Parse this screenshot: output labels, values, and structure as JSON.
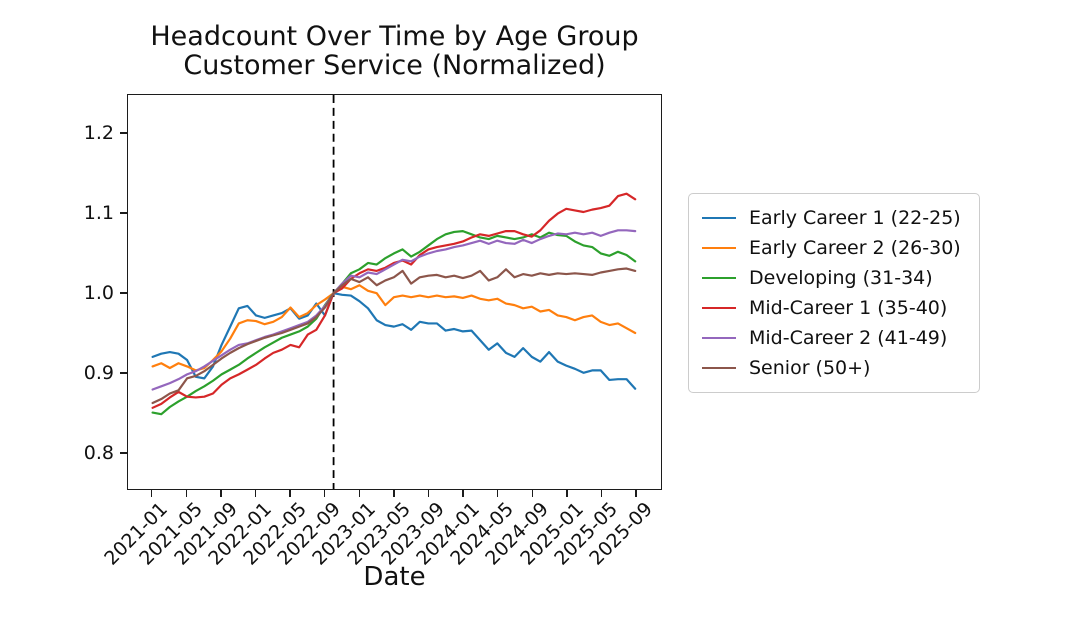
{
  "figure": {
    "title_line1": "Headcount Over Time by Age Group",
    "title_line2": "Customer Service (Normalized)",
    "xlabel": "Date"
  },
  "chart_data": {
    "type": "line",
    "title": "Headcount Over Time by Age Group",
    "subtitle": "Customer Service (Normalized)",
    "xlabel": "Date",
    "ylabel": "",
    "grid": false,
    "legend_position": "outside-right",
    "ylim": [
      0.754,
      1.249
    ],
    "y_ticks": [
      0.8,
      0.9,
      1.0,
      1.1,
      1.2
    ],
    "x_tick_labels": [
      "2021-01",
      "2021-05",
      "2021-09",
      "2022-01",
      "2022-05",
      "2022-09",
      "2023-01",
      "2023-05",
      "2023-09",
      "2024-01",
      "2024-05",
      "2024-09",
      "2025-01",
      "2025-05",
      "2025-09"
    ],
    "normalization_line": {
      "month": "2022-10",
      "value": 1.0,
      "style": "dashed",
      "color": "#000000"
    },
    "x_months": [
      "2021-01",
      "2021-02",
      "2021-03",
      "2021-04",
      "2021-05",
      "2021-06",
      "2021-07",
      "2021-08",
      "2021-09",
      "2021-10",
      "2021-11",
      "2021-12",
      "2022-01",
      "2022-02",
      "2022-03",
      "2022-04",
      "2022-05",
      "2022-06",
      "2022-07",
      "2022-08",
      "2022-09",
      "2022-10",
      "2022-11",
      "2022-12",
      "2023-01",
      "2023-02",
      "2023-03",
      "2023-04",
      "2023-05",
      "2023-06",
      "2023-07",
      "2023-08",
      "2023-09",
      "2023-10",
      "2023-11",
      "2023-12",
      "2024-01",
      "2024-02",
      "2024-03",
      "2024-04",
      "2024-05",
      "2024-06",
      "2024-07",
      "2024-08",
      "2024-09",
      "2024-10",
      "2024-11",
      "2024-12",
      "2025-01",
      "2025-02",
      "2025-03",
      "2025-04",
      "2025-05",
      "2025-06",
      "2025-07",
      "2025-08",
      "2025-09"
    ],
    "series": [
      {
        "name": "Early Career 1 (22-25)",
        "color": "#1f77b4",
        "values": [
          0.92,
          0.924,
          0.926,
          0.924,
          0.916,
          0.895,
          0.893,
          0.908,
          0.935,
          0.958,
          0.981,
          0.984,
          0.972,
          0.969,
          0.972,
          0.975,
          0.981,
          0.968,
          0.972,
          0.987,
          0.972,
          1.0,
          0.998,
          0.997,
          0.99,
          0.981,
          0.966,
          0.96,
          0.958,
          0.961,
          0.954,
          0.964,
          0.962,
          0.962,
          0.953,
          0.955,
          0.952,
          0.953,
          0.941,
          0.929,
          0.937,
          0.925,
          0.92,
          0.931,
          0.92,
          0.914,
          0.926,
          0.914,
          0.909,
          0.905,
          0.9,
          0.903,
          0.903,
          0.891,
          0.892,
          0.892,
          0.88
        ]
      },
      {
        "name": "Early Career 2 (26-30)",
        "color": "#ff7f0e",
        "values": [
          0.908,
          0.912,
          0.906,
          0.912,
          0.908,
          0.903,
          0.906,
          0.916,
          0.927,
          0.943,
          0.962,
          0.966,
          0.965,
          0.961,
          0.964,
          0.97,
          0.982,
          0.97,
          0.975,
          0.985,
          0.992,
          1.0,
          1.008,
          1.005,
          1.01,
          1.003,
          1.0,
          0.985,
          0.995,
          0.997,
          0.995,
          0.997,
          0.995,
          0.997,
          0.995,
          0.996,
          0.994,
          0.997,
          0.993,
          0.991,
          0.993,
          0.987,
          0.985,
          0.981,
          0.983,
          0.977,
          0.979,
          0.972,
          0.97,
          0.966,
          0.97,
          0.972,
          0.964,
          0.96,
          0.962,
          0.956,
          0.95
        ]
      },
      {
        "name": "Developing (31-34)",
        "color": "#2ca02c",
        "values": [
          0.85,
          0.848,
          0.857,
          0.864,
          0.87,
          0.877,
          0.883,
          0.89,
          0.898,
          0.904,
          0.91,
          0.918,
          0.925,
          0.932,
          0.938,
          0.944,
          0.948,
          0.952,
          0.958,
          0.968,
          0.985,
          1.0,
          1.012,
          1.025,
          1.03,
          1.038,
          1.036,
          1.044,
          1.05,
          1.055,
          1.046,
          1.052,
          1.06,
          1.068,
          1.074,
          1.077,
          1.078,
          1.074,
          1.07,
          1.068,
          1.072,
          1.07,
          1.068,
          1.07,
          1.074,
          1.07,
          1.076,
          1.073,
          1.072,
          1.065,
          1.06,
          1.058,
          1.05,
          1.047,
          1.052,
          1.048,
          1.04
        ]
      },
      {
        "name": "Mid-Career 1 (35-40)",
        "color": "#d62728",
        "values": [
          0.856,
          0.861,
          0.869,
          0.876,
          0.87,
          0.869,
          0.87,
          0.874,
          0.885,
          0.893,
          0.898,
          0.904,
          0.91,
          0.918,
          0.925,
          0.929,
          0.935,
          0.932,
          0.948,
          0.954,
          0.972,
          1.0,
          1.006,
          1.018,
          1.025,
          1.03,
          1.028,
          1.032,
          1.038,
          1.041,
          1.036,
          1.048,
          1.055,
          1.058,
          1.06,
          1.062,
          1.065,
          1.07,
          1.074,
          1.072,
          1.075,
          1.078,
          1.078,
          1.074,
          1.071,
          1.079,
          1.091,
          1.1,
          1.106,
          1.104,
          1.102,
          1.105,
          1.107,
          1.11,
          1.122,
          1.125,
          1.118
        ]
      },
      {
        "name": "Mid-Career 2 (41-49)",
        "color": "#9467bd",
        "values": [
          0.879,
          0.883,
          0.887,
          0.892,
          0.898,
          0.902,
          0.908,
          0.915,
          0.922,
          0.929,
          0.935,
          0.937,
          0.941,
          0.945,
          0.948,
          0.952,
          0.956,
          0.96,
          0.964,
          0.972,
          0.984,
          1.0,
          1.012,
          1.022,
          1.02,
          1.026,
          1.024,
          1.03,
          1.036,
          1.042,
          1.04,
          1.046,
          1.05,
          1.053,
          1.055,
          1.058,
          1.06,
          1.063,
          1.066,
          1.062,
          1.066,
          1.063,
          1.062,
          1.067,
          1.063,
          1.068,
          1.072,
          1.075,
          1.074,
          1.076,
          1.074,
          1.076,
          1.072,
          1.076,
          1.079,
          1.079,
          1.078
        ]
      },
      {
        "name": "Senior (50+)",
        "color": "#8c564b",
        "values": [
          0.862,
          0.867,
          0.874,
          0.878,
          0.893,
          0.896,
          0.902,
          0.91,
          0.918,
          0.925,
          0.931,
          0.936,
          0.94,
          0.944,
          0.947,
          0.95,
          0.954,
          0.958,
          0.962,
          0.97,
          0.982,
          1.0,
          1.01,
          1.018,
          1.014,
          1.02,
          1.01,
          1.016,
          1.02,
          1.028,
          1.012,
          1.02,
          1.022,
          1.023,
          1.02,
          1.022,
          1.019,
          1.022,
          1.028,
          1.016,
          1.02,
          1.03,
          1.02,
          1.024,
          1.022,
          1.025,
          1.023,
          1.025,
          1.024,
          1.025,
          1.024,
          1.023,
          1.026,
          1.028,
          1.03,
          1.031,
          1.028
        ]
      }
    ]
  }
}
